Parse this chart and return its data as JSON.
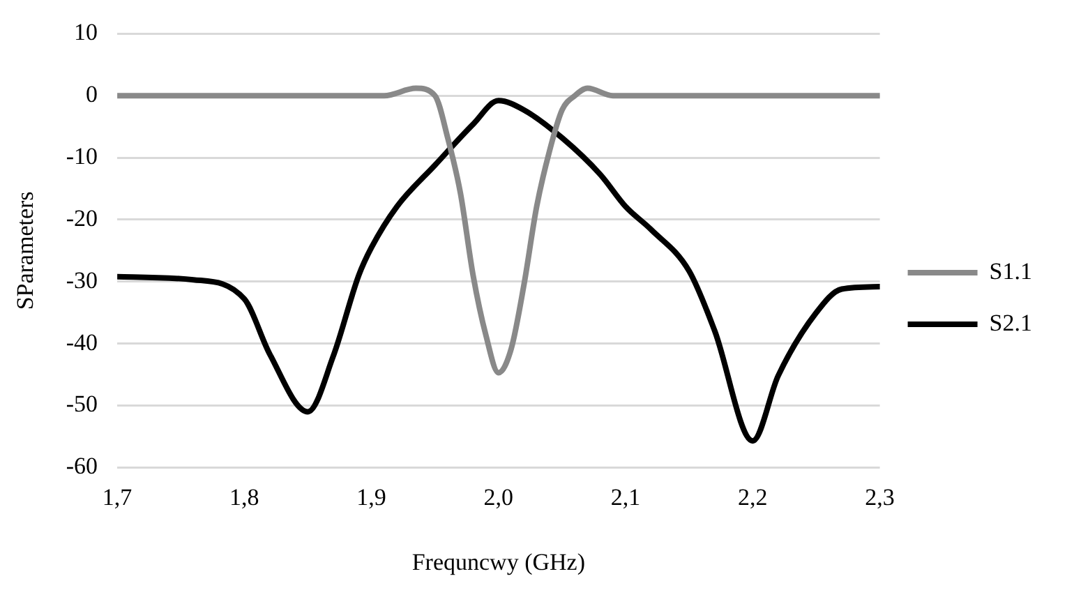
{
  "chart_data": {
    "type": "line",
    "xlabel": "Frequncwy (GHz)",
    "ylabel": "SParameters",
    "xlim": [
      1.7,
      2.3
    ],
    "xticks": [
      {
        "value": 1.7,
        "label": "1,7"
      },
      {
        "value": 1.8,
        "label": "1,8"
      },
      {
        "value": 1.9,
        "label": "1,9"
      },
      {
        "value": 2.0,
        "label": "2,0"
      },
      {
        "value": 2.1,
        "label": "2,1"
      },
      {
        "value": 2.2,
        "label": "2,2"
      },
      {
        "value": 2.3,
        "label": "2,3"
      }
    ],
    "ylim": [
      -60,
      10
    ],
    "yticks": [
      -60,
      -50,
      -40,
      -30,
      -20,
      -10,
      0,
      10
    ],
    "grid": "y",
    "legend": "right",
    "marker": "none",
    "line_style": "solid",
    "series": [
      {
        "name": "S1.1",
        "color": "#898989",
        "x": [
          1.7,
          1.8,
          1.9,
          1.91,
          1.935,
          1.95,
          1.96,
          1.97,
          1.98,
          1.99,
          2.0,
          2.01,
          2.02,
          2.03,
          2.04,
          2.05,
          2.06,
          2.07,
          2.09,
          2.2,
          2.3
        ],
        "values": [
          0,
          0,
          0,
          0,
          1.2,
          0,
          -6.8,
          -15.7,
          -29,
          -38.6,
          -44.7,
          -40.8,
          -30.5,
          -17.9,
          -9,
          -2.3,
          0,
          1.2,
          0,
          0,
          0
        ]
      },
      {
        "name": "S2.1",
        "color": "#000000",
        "x": [
          1.7,
          1.76,
          1.8,
          1.82,
          1.85,
          1.87,
          1.89,
          1.9,
          1.92,
          1.95,
          1.98,
          2.0,
          2.02,
          2.05,
          2.08,
          2.1,
          2.12,
          2.15,
          2.17,
          2.2,
          2.22,
          2.25,
          2.27,
          2.3
        ],
        "values": [
          -29.2,
          -29.7,
          -32.8,
          -41.7,
          -51,
          -42,
          -29,
          -24.5,
          -17.9,
          -11.2,
          -4.6,
          -0.8,
          -2.3,
          -6.8,
          -12.7,
          -17.9,
          -21.6,
          -28.3,
          -37.9,
          -55.7,
          -45.2,
          -35,
          -31.2,
          -30.8
        ]
      }
    ]
  }
}
